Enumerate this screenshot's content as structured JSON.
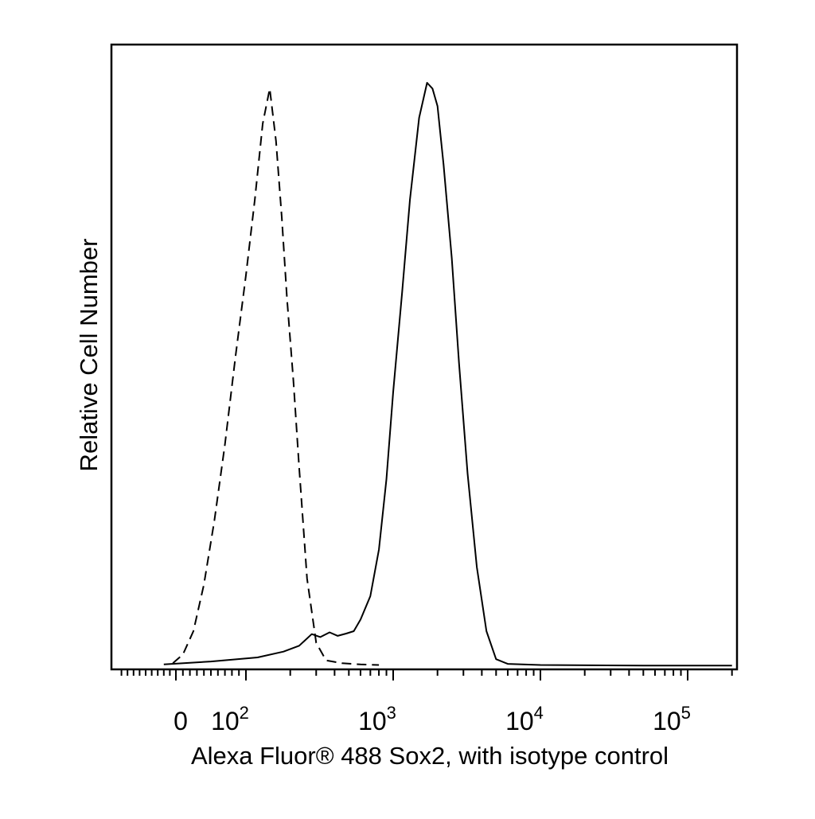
{
  "chart_data": {
    "type": "line",
    "title": "",
    "xlabel": "Alexa Fluor® 488 Sox2, with isotype control",
    "ylabel": "Relative Cell Number",
    "x_scale": "biexponential",
    "xlim": [
      -100,
      200000
    ],
    "ylim": [
      0,
      100
    ],
    "grid": false,
    "legend": "none",
    "x_tick_labels": [
      {
        "base": "0",
        "exp": "",
        "value": 0
      },
      {
        "base": "10",
        "exp": "2",
        "value": 100
      },
      {
        "base": "10",
        "exp": "3",
        "value": 1000
      },
      {
        "base": "10",
        "exp": "4",
        "value": 10000
      },
      {
        "base": "10",
        "exp": "5",
        "value": 100000
      }
    ],
    "series": [
      {
        "style": "dashed",
        "color": "#000000",
        "x": [
          -5,
          10,
          25,
          40,
          55,
          70,
          85,
          100,
          115,
          130,
          145,
          160,
          175,
          190,
          210,
          230,
          260,
          300,
          350,
          450,
          600,
          800
        ],
        "values": [
          0.5,
          2,
          6,
          14,
          25,
          38,
          53,
          67,
          80,
          93,
          99,
          90,
          77,
          63,
          49,
          34,
          15,
          4,
          1,
          0.5,
          0.3,
          0.2
        ]
      },
      {
        "style": "solid",
        "color": "#000000",
        "x": [
          -20,
          50,
          120,
          180,
          230,
          280,
          320,
          370,
          420,
          480,
          540,
          600,
          700,
          800,
          900,
          1000,
          1150,
          1300,
          1500,
          1700,
          1850,
          2000,
          2200,
          2500,
          2800,
          3200,
          3700,
          4300,
          5000,
          6000,
          10000,
          50000,
          200000
        ],
        "values": [
          0.3,
          0.8,
          1.5,
          2.5,
          3.5,
          5.5,
          5,
          5.8,
          5.2,
          5.6,
          6,
          8,
          12,
          20,
          32,
          47,
          64,
          80,
          94,
          100,
          99,
          96,
          86,
          70,
          52,
          33,
          17,
          6,
          1.2,
          0.4,
          0.2,
          0.1,
          0.1
        ]
      }
    ]
  }
}
